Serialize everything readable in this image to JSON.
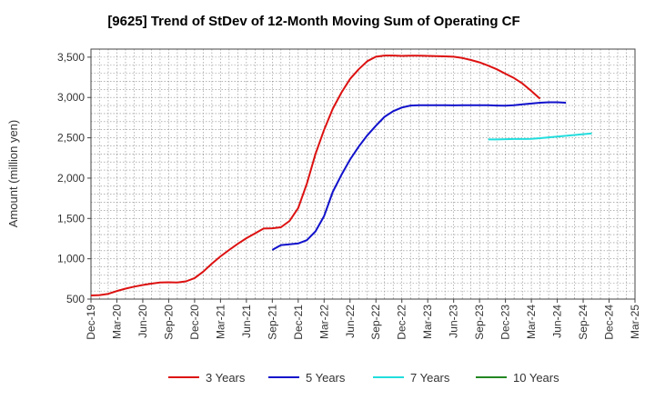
{
  "chart_data": {
    "type": "line",
    "title": "[9625]  Trend of StDev of 12-Month Moving Sum of Operating CF",
    "xlabel": "",
    "ylabel": "Amount (million yen)",
    "ylim": [
      500,
      3600
    ],
    "y_ticks": [
      500,
      1000,
      1500,
      2000,
      2500,
      3000,
      3500
    ],
    "y_tick_labels": [
      "500",
      "1,000",
      "1,500",
      "2,000",
      "2,500",
      "3,000",
      "3,500"
    ],
    "x_ticks": [
      "Dec-19",
      "Mar-20",
      "Jun-20",
      "Sep-20",
      "Dec-20",
      "Mar-21",
      "Jun-21",
      "Sep-21",
      "Dec-21",
      "Mar-22",
      "Jun-22",
      "Sep-22",
      "Dec-22",
      "Mar-23",
      "Jun-23",
      "Sep-23",
      "Dec-23",
      "Mar-24",
      "Jun-24",
      "Sep-24",
      "Dec-24",
      "Mar-25"
    ],
    "grid": true,
    "legend_position": "bottom",
    "series": [
      {
        "name": "3 Years",
        "color": "#dd1111",
        "start_index": 0,
        "values": [
          545,
          550,
          565,
          600,
          630,
          655,
          675,
          692,
          705,
          708,
          705,
          720,
          760,
          840,
          940,
          1030,
          1110,
          1185,
          1255,
          1315,
          1375,
          1378,
          1390,
          1470,
          1630,
          1930,
          2300,
          2600,
          2860,
          3060,
          3230,
          3350,
          3450,
          3505,
          3520,
          3520,
          3515,
          3518,
          3518,
          3515,
          3512,
          3510,
          3505,
          3490,
          3465,
          3435,
          3395,
          3350,
          3295,
          3240,
          3170,
          3080,
          2985
        ]
      },
      {
        "name": "5 Years",
        "color": "#1111cc",
        "start_index": 21,
        "values": [
          1110,
          1170,
          1180,
          1190,
          1230,
          1340,
          1530,
          1830,
          2040,
          2230,
          2390,
          2530,
          2650,
          2760,
          2830,
          2875,
          2900,
          2905,
          2905,
          2903,
          2903,
          2902,
          2903,
          2905,
          2905,
          2903,
          2900,
          2898,
          2905,
          2915,
          2925,
          2935,
          2940,
          2940,
          2935
        ]
      },
      {
        "name": "7 Years",
        "color": "#22dddd",
        "start_index": 46,
        "values": [
          2480,
          2480,
          2483,
          2485,
          2485,
          2487,
          2495,
          2505,
          2515,
          2525,
          2535,
          2545,
          2555
        ]
      },
      {
        "name": "10 Years",
        "color": "#228822",
        "start_index": 0,
        "values": []
      }
    ]
  }
}
